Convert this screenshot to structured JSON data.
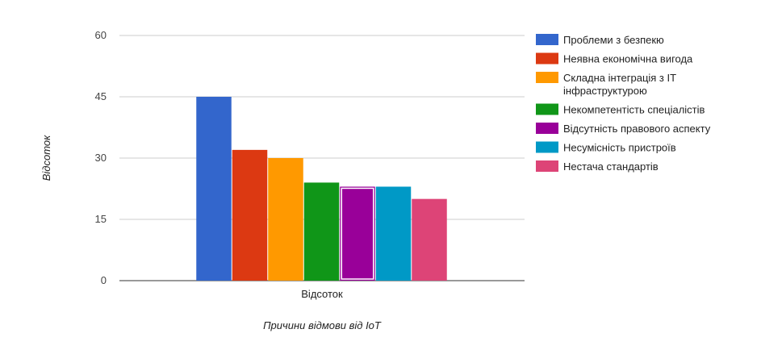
{
  "chart_data": {
    "type": "bar",
    "title": "",
    "xlabel": "Причини відмови від IoT",
    "ylabel": "Відсоток",
    "categories": [
      "Відсоток"
    ],
    "ylim": [
      0,
      60
    ],
    "yticks": [
      0,
      15,
      30,
      45,
      60
    ],
    "grid": true,
    "legend_position": "right",
    "series": [
      {
        "name": "Проблеми з безпекю",
        "values": [
          45
        ],
        "color": "#3366cc"
      },
      {
        "name": "Неявна економічна вигода",
        "values": [
          32
        ],
        "color": "#dc3912"
      },
      {
        "name": "Складна інтеграція з IT інфраструктурою",
        "legend_lines": [
          "Складна інтеграція з IT",
          "інфраструктурою"
        ],
        "values": [
          30
        ],
        "color": "#ff9900"
      },
      {
        "name": "Некомпетентість спеціалістів",
        "values": [
          24
        ],
        "color": "#109618"
      },
      {
        "name": "Відсутність правового аспекту",
        "values": [
          23
        ],
        "color": "#990099",
        "highlighted": true
      },
      {
        "name": "Несумісність пристроїв",
        "values": [
          23
        ],
        "color": "#0099c6"
      },
      {
        "name": "Нестача стандартів",
        "values": [
          20
        ],
        "color": "#dd4477"
      }
    ]
  }
}
